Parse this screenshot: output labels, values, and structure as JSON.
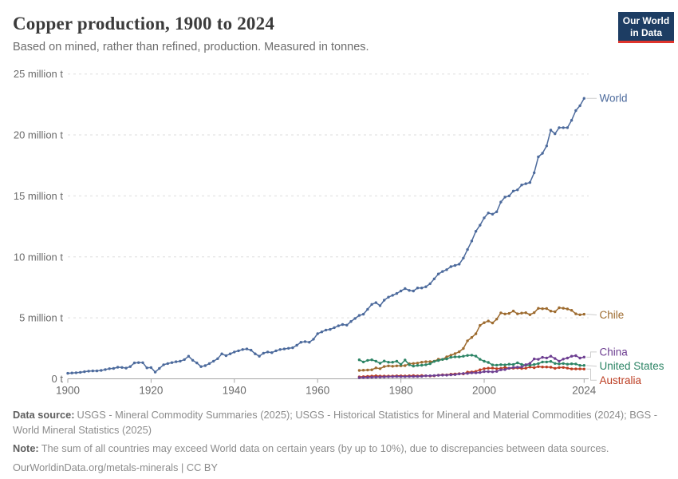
{
  "header": {
    "title": "Copper production, 1900 to 2024",
    "subtitle": "Based on mined, rather than refined, production. Measured in tonnes.",
    "logo": {
      "line1": "Our World",
      "line2": "in Data",
      "bg_color": "#1d3d63",
      "accent_color": "#e0342c"
    }
  },
  "footer": {
    "data_source_label": "Data source:",
    "data_source": "USGS - Mineral Commodity Summaries (2025); USGS - Historical Statistics for Mineral and Material Commodities (2024); BGS - World Mineral Statistics (2025)",
    "note_label": "Note:",
    "note": "The sum of all countries may exceed World data on certain years (by up to 10%), due to discrepancies between data sources.",
    "license": "OurWorldinData.org/metals-minerals | CC BY"
  },
  "chart_data": {
    "type": "line",
    "title": "Copper production, 1900 to 2024",
    "unit": "tonnes",
    "values_unit": "million tonnes",
    "xlim": [
      1900,
      2024
    ],
    "ylim_million_t": [
      0,
      25
    ],
    "x_ticks": [
      1900,
      1920,
      1940,
      1960,
      1980,
      2000,
      2024
    ],
    "y_ticks": [
      {
        "value": 0,
        "label": "0 t"
      },
      {
        "value": 5,
        "label": "5 million t"
      },
      {
        "value": 10,
        "label": "10 million t"
      },
      {
        "value": 15,
        "label": "15 million t"
      },
      {
        "value": 20,
        "label": "20 million t"
      },
      {
        "value": 25,
        "label": "25 million t"
      }
    ],
    "grid": "horizontal-dashed",
    "legend_position": "end-of-line labels, right side",
    "marker_style": "dots on line",
    "series": [
      {
        "name": "World",
        "color": "#4C6A9C",
        "start_year": 1900,
        "end_year": 2024,
        "values_million_t": [
          0.45,
          0.48,
          0.5,
          0.53,
          0.58,
          0.63,
          0.65,
          0.65,
          0.69,
          0.76,
          0.83,
          0.85,
          0.95,
          0.93,
          0.88,
          1.0,
          1.3,
          1.33,
          1.32,
          0.9,
          0.92,
          0.55,
          0.85,
          1.15,
          1.25,
          1.33,
          1.4,
          1.45,
          1.58,
          1.85,
          1.52,
          1.3,
          1.0,
          1.08,
          1.25,
          1.45,
          1.65,
          2.05,
          1.9,
          2.05,
          2.2,
          2.3,
          2.4,
          2.45,
          2.35,
          2.05,
          1.85,
          2.1,
          2.2,
          2.15,
          2.3,
          2.4,
          2.45,
          2.5,
          2.55,
          2.75,
          3.0,
          3.05,
          3.0,
          3.25,
          3.7,
          3.85,
          4.0,
          4.05,
          4.2,
          4.35,
          4.45,
          4.4,
          4.7,
          4.95,
          5.2,
          5.3,
          5.7,
          6.1,
          6.25,
          6.0,
          6.45,
          6.7,
          6.85,
          7.0,
          7.2,
          7.4,
          7.25,
          7.2,
          7.45,
          7.45,
          7.55,
          7.8,
          8.2,
          8.6,
          8.8,
          8.95,
          9.2,
          9.3,
          9.4,
          9.9,
          10.6,
          11.3,
          12.1,
          12.6,
          13.2,
          13.6,
          13.5,
          13.7,
          14.5,
          14.9,
          15.0,
          15.4,
          15.5,
          15.9,
          16.0,
          16.1,
          16.9,
          18.2,
          18.5,
          19.1,
          20.4,
          20.1,
          20.6,
          20.6,
          20.6,
          21.2,
          22.0,
          22.4,
          23.0
        ]
      },
      {
        "name": "Chile",
        "color": "#9D6B2F",
        "start_year": 1970,
        "end_year": 2024,
        "values_million_t": [
          0.69,
          0.71,
          0.72,
          0.74,
          0.9,
          0.83,
          1.01,
          1.06,
          1.03,
          1.06,
          1.07,
          1.08,
          1.24,
          1.26,
          1.29,
          1.36,
          1.4,
          1.41,
          1.45,
          1.61,
          1.59,
          1.81,
          1.93,
          2.06,
          2.22,
          2.49,
          3.12,
          3.39,
          3.69,
          4.38,
          4.6,
          4.74,
          4.58,
          4.9,
          5.41,
          5.32,
          5.36,
          5.56,
          5.33,
          5.39,
          5.42,
          5.26,
          5.43,
          5.78,
          5.75,
          5.76,
          5.55,
          5.5,
          5.83,
          5.79,
          5.73,
          5.62,
          5.33,
          5.25,
          5.3
        ]
      },
      {
        "name": "China",
        "color": "#6D3E91",
        "start_year": 1970,
        "end_year": 2024,
        "values_million_t": [
          0.1,
          0.11,
          0.12,
          0.13,
          0.14,
          0.15,
          0.16,
          0.17,
          0.18,
          0.19,
          0.18,
          0.18,
          0.19,
          0.19,
          0.19,
          0.2,
          0.25,
          0.25,
          0.27,
          0.29,
          0.3,
          0.3,
          0.33,
          0.35,
          0.4,
          0.44,
          0.44,
          0.49,
          0.49,
          0.52,
          0.59,
          0.59,
          0.57,
          0.61,
          0.74,
          0.76,
          0.87,
          0.93,
          0.95,
          0.96,
          1.16,
          1.27,
          1.63,
          1.6,
          1.76,
          1.71,
          1.85,
          1.66,
          1.45,
          1.62,
          1.7,
          1.85,
          1.9,
          1.7,
          1.78
        ]
      },
      {
        "name": "United States",
        "color": "#2C8465",
        "start_year": 1970,
        "end_year": 2024,
        "values_million_t": [
          1.56,
          1.38,
          1.51,
          1.56,
          1.45,
          1.28,
          1.46,
          1.36,
          1.36,
          1.44,
          1.18,
          1.54,
          1.15,
          1.04,
          1.1,
          1.11,
          1.15,
          1.24,
          1.42,
          1.5,
          1.59,
          1.63,
          1.76,
          1.8,
          1.8,
          1.85,
          1.92,
          1.94,
          1.86,
          1.6,
          1.44,
          1.34,
          1.14,
          1.12,
          1.16,
          1.14,
          1.2,
          1.17,
          1.31,
          1.18,
          1.11,
          1.11,
          1.17,
          1.25,
          1.38,
          1.38,
          1.43,
          1.26,
          1.22,
          1.26,
          1.2,
          1.23,
          1.22,
          1.1,
          1.1
        ]
      },
      {
        "name": "Australia",
        "color": "#BC3D22",
        "start_year": 1970,
        "end_year": 2024,
        "values_million_t": [
          0.16,
          0.18,
          0.2,
          0.22,
          0.25,
          0.22,
          0.22,
          0.22,
          0.22,
          0.24,
          0.24,
          0.23,
          0.25,
          0.26,
          0.24,
          0.26,
          0.25,
          0.23,
          0.24,
          0.3,
          0.33,
          0.32,
          0.38,
          0.4,
          0.42,
          0.4,
          0.55,
          0.56,
          0.61,
          0.74,
          0.83,
          0.87,
          0.88,
          0.83,
          0.85,
          0.93,
          0.86,
          0.87,
          0.89,
          0.85,
          0.87,
          0.96,
          0.91,
          1.0,
          0.97,
          0.97,
          0.95,
          0.86,
          0.92,
          0.93,
          0.88,
          0.81,
          0.81,
          0.81,
          0.8
        ]
      }
    ]
  }
}
